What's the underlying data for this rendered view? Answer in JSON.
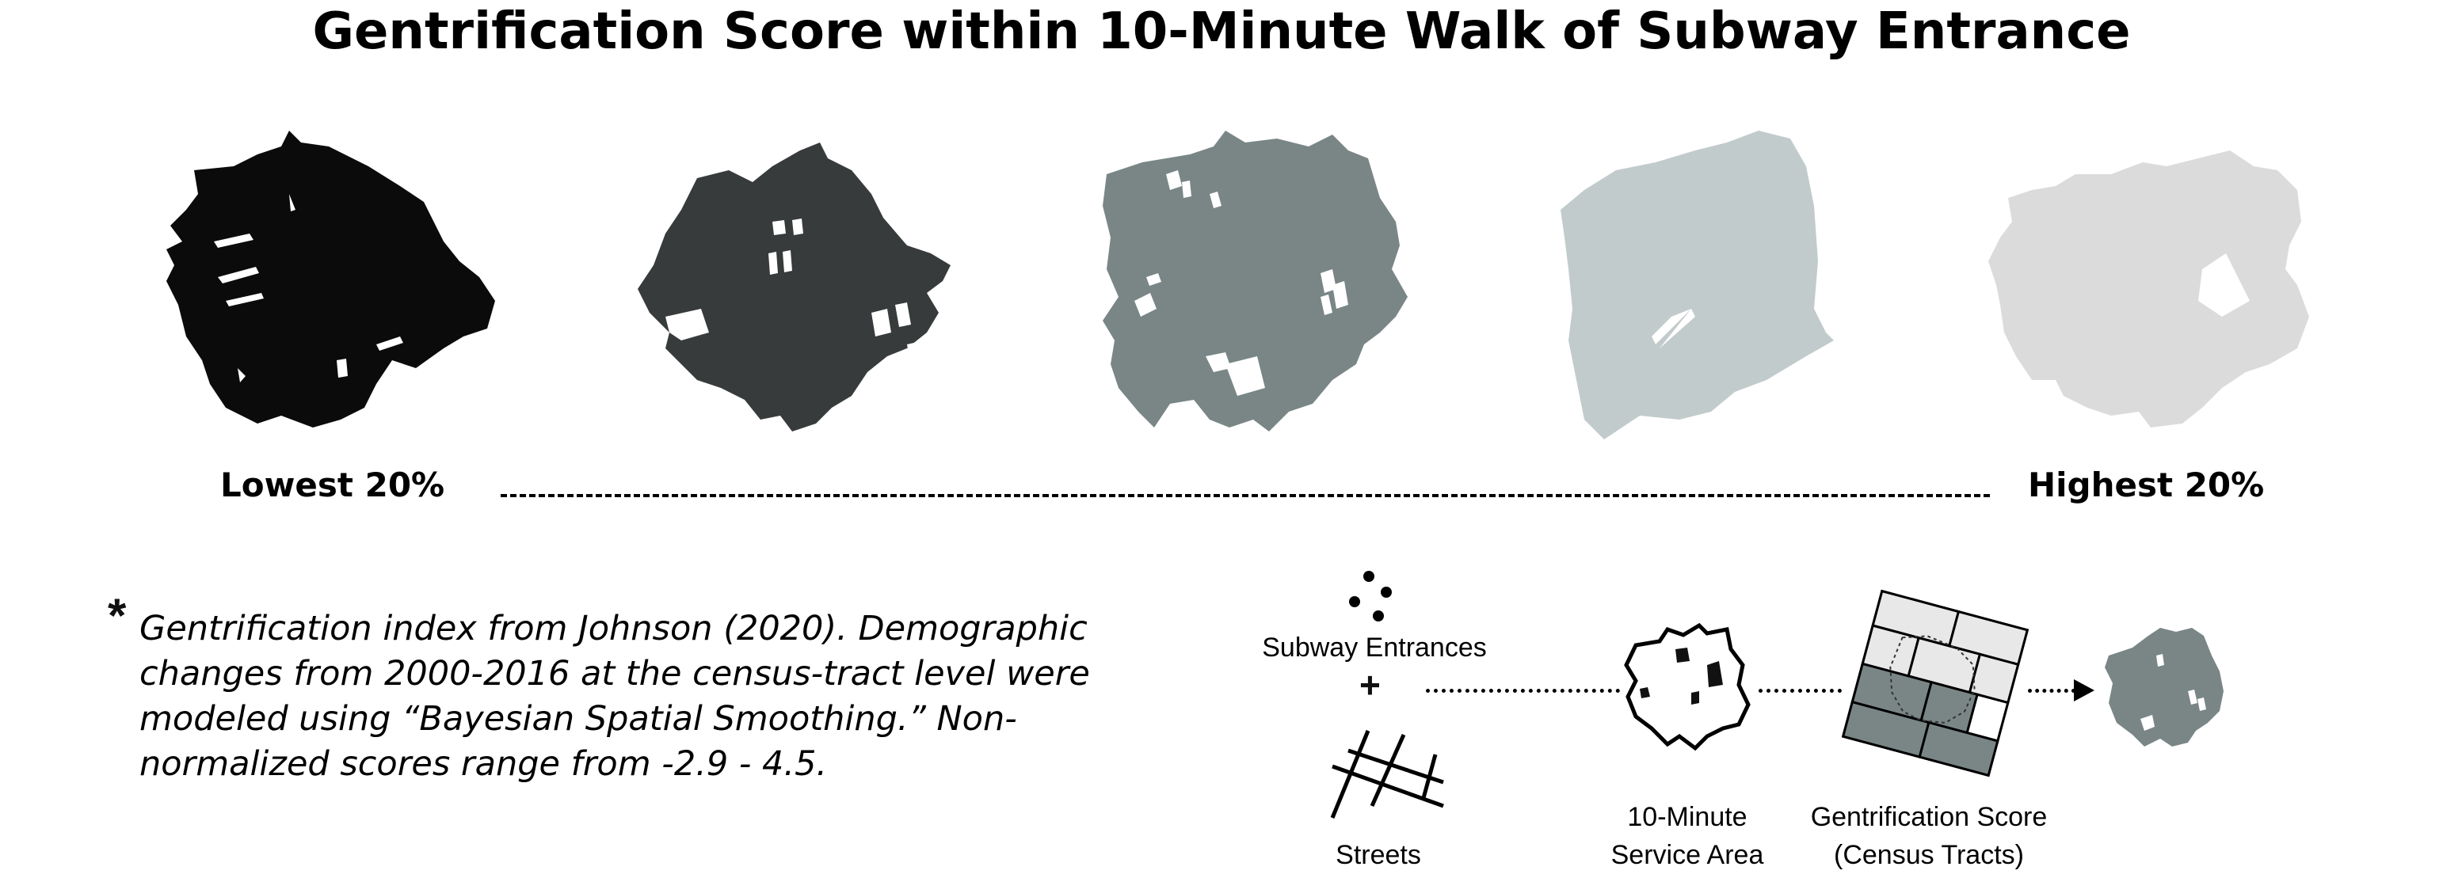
{
  "title": "Gentrification Score within 10-Minute Walk of Subway Entrance",
  "scale": {
    "low_label": "Lowest 20%",
    "high_label": "Highest 20%"
  },
  "quintiles": [
    {
      "name": "quintile-1",
      "color": "#0b0b0b"
    },
    {
      "name": "quintile-2",
      "color": "#373b3b"
    },
    {
      "name": "quintile-3",
      "color": "#7a8686"
    },
    {
      "name": "quintile-4",
      "color": "#c2cbcb"
    },
    {
      "name": "quintile-5",
      "color": "#dbdbdb"
    }
  ],
  "note": {
    "marker": "*",
    "text": "Gentrification index from Johnson (2020). Demographic changes from 2000-2016 at the census-tract level were modeled using “Bayesian Spatial Smoothing.” Non-normalized scores range from -2.9 - 4.5."
  },
  "process": {
    "subway_label": "Subway Entrances",
    "plus": "+",
    "streets_label": "Streets",
    "service_area_label_1": "10-Minute",
    "service_area_label_2": "Service Area",
    "score_label_1": "Gentrification Score",
    "score_label_2": "(Census Tracts)"
  }
}
